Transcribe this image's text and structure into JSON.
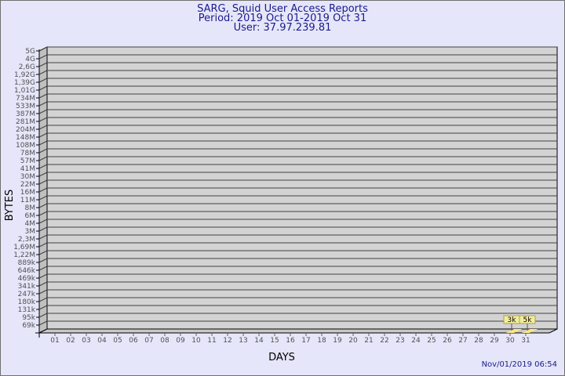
{
  "header": {
    "title": "SARG, Squid User Access Reports",
    "period": "Period: 2019 Oct 01-2019 Oct 31",
    "user": "User: 37.97.239.81"
  },
  "footer": {
    "timestamp": "Nov/01/2019 06:54"
  },
  "chart_data": {
    "type": "bar",
    "xlabel": "DAYS",
    "ylabel": "BYTES",
    "y_scale": "log",
    "y_tick_labels": [
      "5G",
      "4G",
      "2,6G",
      "1,92G",
      "1,39G",
      "1,01G",
      "734M",
      "533M",
      "387M",
      "281M",
      "204M",
      "148M",
      "108M",
      "78M",
      "57M",
      "41M",
      "30M",
      "22M",
      "16M",
      "11M",
      "8M",
      "6M",
      "4M",
      "3M",
      "2,3M",
      "1,69M",
      "1,22M",
      "889k",
      "646k",
      "469k",
      "341k",
      "247k",
      "180k",
      "131k",
      "95k",
      "69k"
    ],
    "categories": [
      "01",
      "02",
      "03",
      "04",
      "05",
      "06",
      "07",
      "08",
      "09",
      "10",
      "11",
      "12",
      "13",
      "14",
      "15",
      "16",
      "17",
      "18",
      "19",
      "20",
      "21",
      "22",
      "23",
      "24",
      "25",
      "26",
      "27",
      "28",
      "29",
      "30",
      "31"
    ],
    "values": [
      0,
      0,
      0,
      0,
      0,
      0,
      0,
      0,
      0,
      0,
      0,
      0,
      0,
      0,
      0,
      0,
      0,
      0,
      0,
      0,
      0,
      0,
      0,
      0,
      0,
      0,
      0,
      0,
      0,
      3000,
      5000
    ],
    "data_labels": {
      "30": "3k",
      "31": "5k"
    },
    "grid": true,
    "colors": {
      "wall": "#d3d3d3",
      "bar": "#ffe680",
      "label_bg": "#f0eca0",
      "title": "#1a1a8c"
    }
  }
}
